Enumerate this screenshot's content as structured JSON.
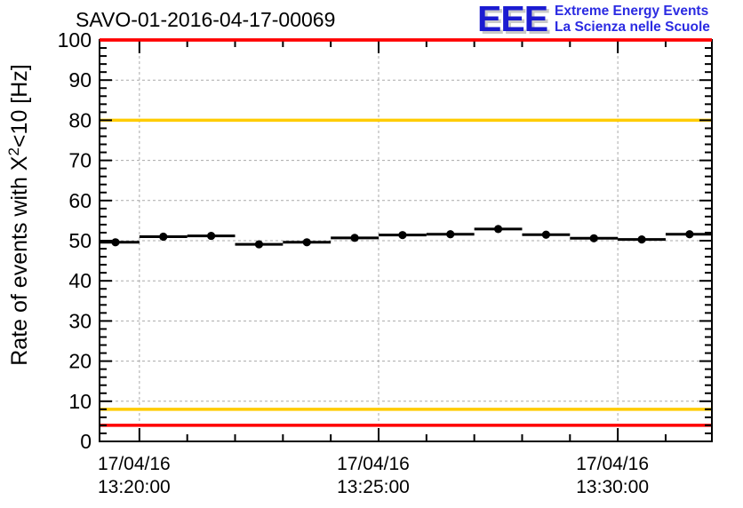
{
  "header": {
    "title": "SAVO-01-2016-04-17-00069",
    "logo": {
      "acronym": "EEE",
      "line1": "Extreme Energy Events",
      "line2": "La Scienza nelle Scuole"
    }
  },
  "chart_data": {
    "type": "scatter",
    "title": "SAVO-01-2016-04-17-00069",
    "ylabel": {
      "prefix": "Rate of events with X",
      "sup": "2",
      "suffix": "<10 [Hz]"
    },
    "xlabel": "",
    "ylim": [
      0,
      100
    ],
    "y_tick_labels": [
      0,
      10,
      20,
      30,
      40,
      50,
      60,
      70,
      80,
      90,
      100
    ],
    "y_major_step": 10,
    "y_minor_step": 2,
    "xlim": [
      "13:19:10",
      "13:31:58"
    ],
    "x_date": "17/04/16",
    "x_major_ticks": [
      "13:20:00",
      "13:25:00",
      "13:30:00"
    ],
    "x_minor_step_seconds": 60,
    "grid": "dashed",
    "legend": "none",
    "points": [
      {
        "time": "13:19:30",
        "bin_start": "13:19:00",
        "bin_end": "13:20:00",
        "value": 49.6
      },
      {
        "time": "13:20:30",
        "bin_start": "13:20:00",
        "bin_end": "13:21:00",
        "value": 51.0
      },
      {
        "time": "13:21:30",
        "bin_start": "13:21:00",
        "bin_end": "13:22:00",
        "value": 51.2
      },
      {
        "time": "13:22:30",
        "bin_start": "13:22:00",
        "bin_end": "13:23:00",
        "value": 49.1
      },
      {
        "time": "13:23:30",
        "bin_start": "13:23:00",
        "bin_end": "13:24:00",
        "value": 49.6
      },
      {
        "time": "13:24:30",
        "bin_start": "13:24:00",
        "bin_end": "13:25:00",
        "value": 50.7
      },
      {
        "time": "13:25:30",
        "bin_start": "13:25:00",
        "bin_end": "13:26:00",
        "value": 51.4
      },
      {
        "time": "13:26:30",
        "bin_start": "13:26:00",
        "bin_end": "13:27:00",
        "value": 51.6
      },
      {
        "time": "13:27:30",
        "bin_start": "13:27:00",
        "bin_end": "13:28:00",
        "value": 52.9
      },
      {
        "time": "13:28:30",
        "bin_start": "13:28:00",
        "bin_end": "13:29:00",
        "value": 51.5
      },
      {
        "time": "13:29:30",
        "bin_start": "13:29:00",
        "bin_end": "13:30:00",
        "value": 50.6
      },
      {
        "time": "13:30:30",
        "bin_start": "13:30:00",
        "bin_end": "13:31:00",
        "value": 50.3
      },
      {
        "time": "13:31:30",
        "bin_start": "13:31:00",
        "bin_end": "13:32:00",
        "value": 51.6
      }
    ],
    "reference_lines": [
      {
        "y": 100,
        "color": "#ff0000",
        "label": "upper-alarm"
      },
      {
        "y": 80,
        "color": "#ffcc00",
        "label": "upper-warning"
      },
      {
        "y": 8,
        "color": "#ffcc00",
        "label": "lower-warning"
      },
      {
        "y": 4,
        "color": "#ff0000",
        "label": "lower-alarm"
      }
    ],
    "marker": {
      "shape": "circle",
      "color": "#000000"
    },
    "colors": {
      "grid": "#aaaaaa",
      "axis": "#000000",
      "background": "#ffffff"
    }
  }
}
